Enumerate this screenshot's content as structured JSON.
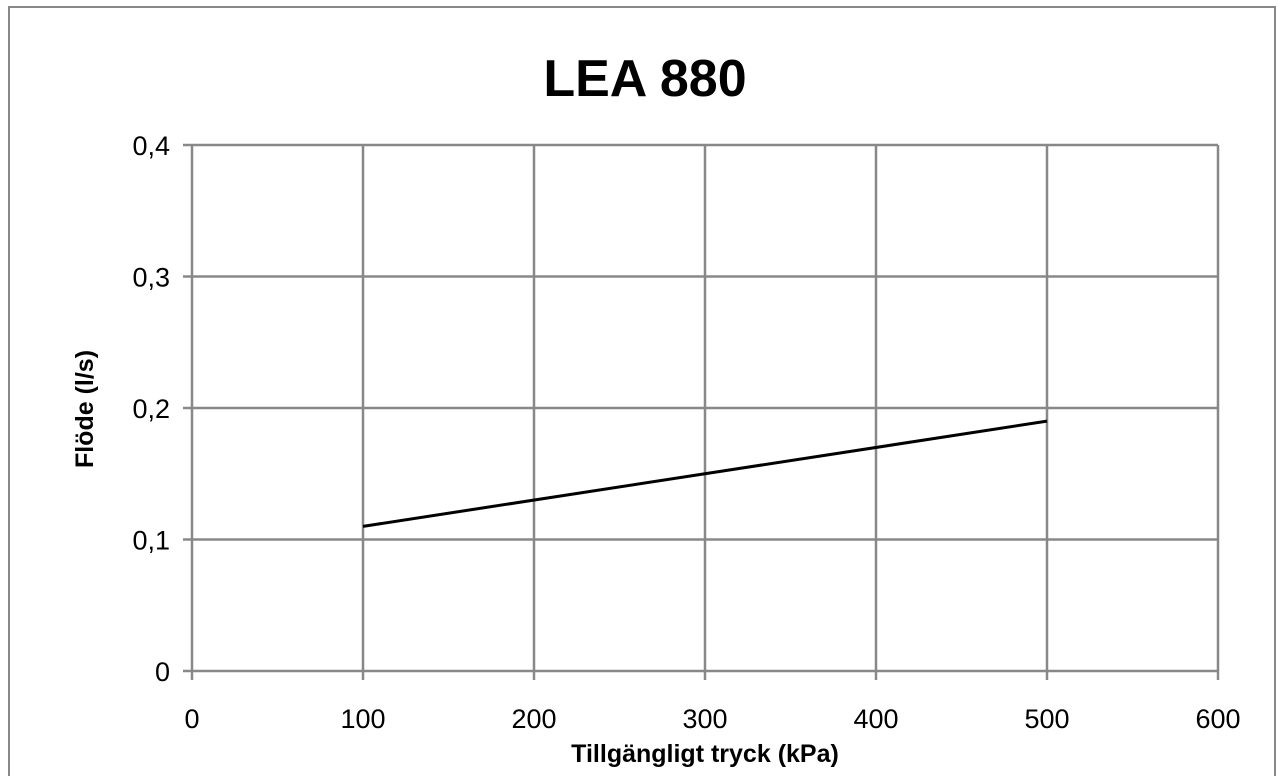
{
  "chart_data": {
    "type": "line",
    "title": "LEA 880",
    "xlabel": "Tillgängligt tryck (kPa)",
    "ylabel": "Flöde (l/s)",
    "xlim": [
      0,
      600
    ],
    "ylim": [
      0,
      0.4
    ],
    "x_ticks": [
      0,
      100,
      200,
      300,
      400,
      500,
      600
    ],
    "x_tick_labels": [
      "0",
      "100",
      "200",
      "300",
      "400",
      "500",
      "600"
    ],
    "y_ticks": [
      0,
      0.1,
      0.2,
      0.3,
      0.4
    ],
    "y_tick_labels": [
      "0",
      "0,1",
      "0,2",
      "0,3",
      "0,4"
    ],
    "grid": true,
    "legend": "none",
    "series": [
      {
        "x": [
          100,
          500
        ],
        "y": [
          0.11,
          0.19
        ],
        "color": "#000000"
      }
    ],
    "colors": {
      "grid": "#888888",
      "axis": "#888888",
      "line": "#000000",
      "background": "#ffffff"
    }
  }
}
